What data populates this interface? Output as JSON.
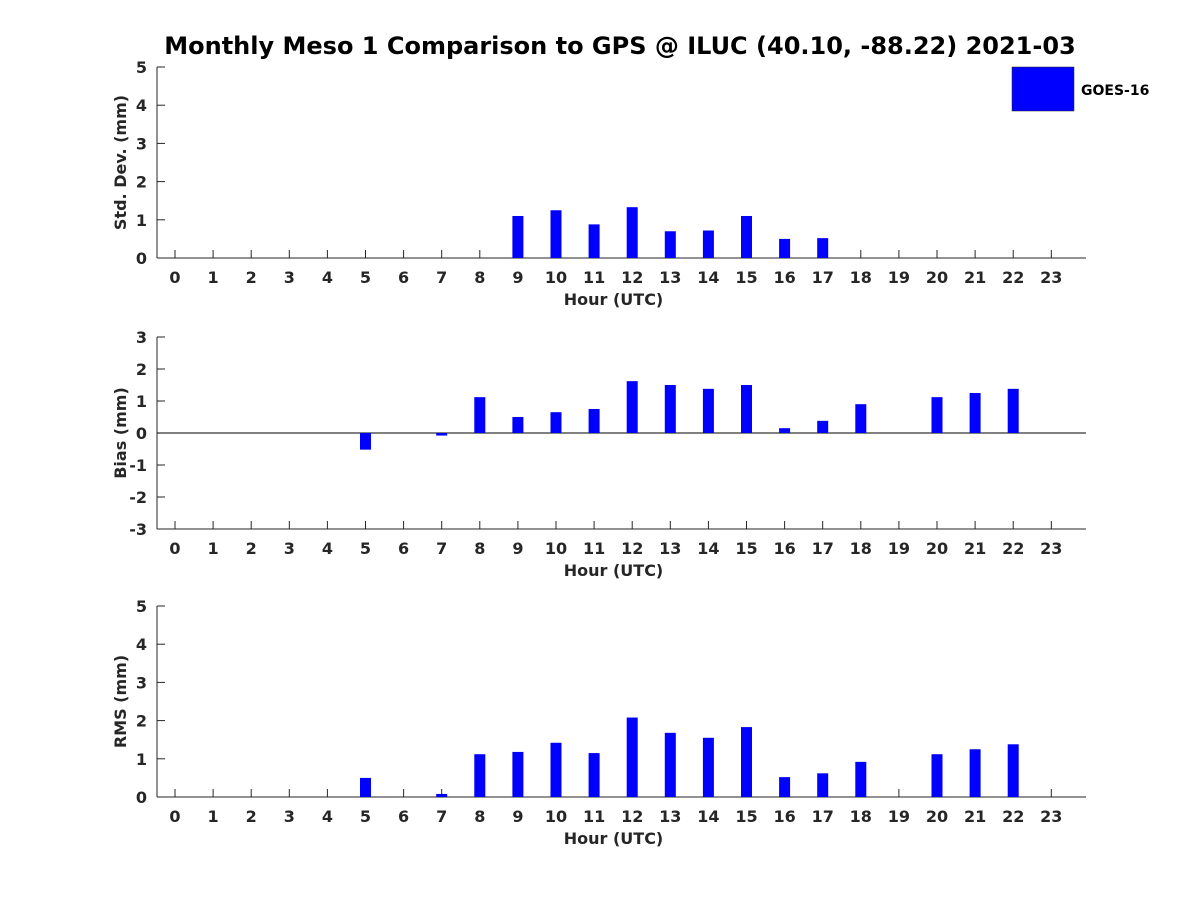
{
  "figure": {
    "title": "Monthly Meso 1 Comparison to GPS @ ILUC (40.10, -88.22) 2021-03",
    "legend": {
      "label": "GOES-16",
      "color": "#0000ff",
      "placement": "top-right"
    },
    "bar_color": "#0000ff",
    "axis_color": "#262626"
  },
  "chart_data": [
    {
      "type": "bar",
      "xlabel": "Hour (UTC)",
      "ylabel": "Std. Dev. (mm)",
      "ylim": [
        0,
        5
      ],
      "yticks": [
        0,
        1,
        2,
        3,
        4,
        5
      ],
      "categories": [
        "0",
        "1",
        "2",
        "3",
        "4",
        "5",
        "6",
        "7",
        "8",
        "9",
        "10",
        "11",
        "12",
        "13",
        "14",
        "15",
        "16",
        "17",
        "18",
        "19",
        "20",
        "21",
        "22",
        "23"
      ],
      "series": [
        {
          "name": "GOES-16",
          "values": [
            0,
            0,
            0,
            0,
            0,
            0,
            0,
            0,
            0,
            1.1,
            1.25,
            0.88,
            1.33,
            0.7,
            0.72,
            1.1,
            0.5,
            0.52,
            0,
            0,
            0,
            0,
            0,
            0
          ]
        }
      ]
    },
    {
      "type": "bar",
      "xlabel": "Hour (UTC)",
      "ylabel": "Bias (mm)",
      "ylim": [
        -3,
        3
      ],
      "yticks": [
        -3,
        -2,
        -1,
        0,
        1,
        2,
        3
      ],
      "zero_line": true,
      "categories": [
        "0",
        "1",
        "2",
        "3",
        "4",
        "5",
        "6",
        "7",
        "8",
        "9",
        "10",
        "11",
        "12",
        "13",
        "14",
        "15",
        "16",
        "17",
        "18",
        "19",
        "20",
        "21",
        "22",
        "23"
      ],
      "series": [
        {
          "name": "GOES-16",
          "values": [
            0,
            0,
            0,
            0,
            0,
            -0.52,
            0,
            -0.08,
            1.12,
            0.5,
            0.65,
            0.75,
            1.62,
            1.5,
            1.38,
            1.5,
            0.15,
            0.38,
            0.9,
            0,
            1.12,
            1.25,
            1.38,
            0
          ]
        }
      ]
    },
    {
      "type": "bar",
      "xlabel": "Hour (UTC)",
      "ylabel": "RMS (mm)",
      "ylim": [
        0,
        5
      ],
      "yticks": [
        0,
        1,
        2,
        3,
        4,
        5
      ],
      "categories": [
        "0",
        "1",
        "2",
        "3",
        "4",
        "5",
        "6",
        "7",
        "8",
        "9",
        "10",
        "11",
        "12",
        "13",
        "14",
        "15",
        "16",
        "17",
        "18",
        "19",
        "20",
        "21",
        "22",
        "23"
      ],
      "series": [
        {
          "name": "GOES-16",
          "values": [
            0,
            0,
            0,
            0,
            0,
            0.5,
            0,
            0.08,
            1.12,
            1.18,
            1.42,
            1.15,
            2.08,
            1.68,
            1.55,
            1.83,
            0.52,
            0.62,
            0.92,
            0,
            1.12,
            1.25,
            1.38,
            0
          ]
        }
      ]
    }
  ]
}
